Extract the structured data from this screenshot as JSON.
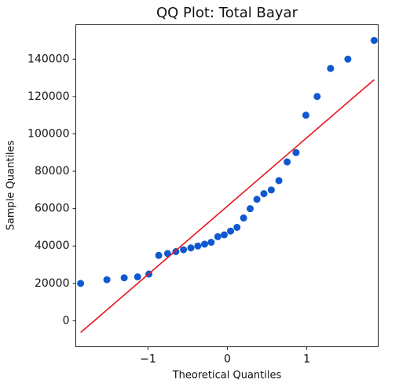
{
  "chart_data": {
    "type": "scatter",
    "title": "QQ Plot: Total Bayar",
    "x_label": "Theoretical Quantiles",
    "y_label": "Sample Quantiles",
    "series": [
      {
        "style": "points",
        "color": "#1058d0",
        "x": [
          -1.849,
          -1.518,
          -1.3,
          -1.131,
          -0.989,
          -0.865,
          -0.753,
          -0.649,
          -0.553,
          -0.46,
          -0.372,
          -0.287,
          -0.204,
          -0.121,
          -0.04,
          0.04,
          0.121,
          0.204,
          0.287,
          0.372,
          0.46,
          0.553,
          0.649,
          0.753,
          0.865,
          0.989,
          1.131,
          1.3,
          1.518,
          1.849
        ],
        "values": [
          20000,
          22000,
          23000,
          23500,
          25000,
          35000,
          36000,
          37000,
          38000,
          39000,
          40000,
          41000,
          42000,
          45000,
          46000,
          48000,
          50000,
          55000,
          60000,
          65000,
          68000,
          70000,
          75000,
          85000,
          90000,
          110000,
          120000,
          135000,
          140000,
          150000
        ]
      },
      {
        "style": "line",
        "color": "#e8141c",
        "x": [
          -1.849,
          1.849
        ],
        "values": [
          -6300,
          129000
        ]
      }
    ],
    "xlim": [
      -1.91,
      1.9
    ],
    "ylim": [
      -13900,
      158400
    ],
    "xticks": [
      {
        "value": -1,
        "label": "−1"
      },
      0,
      1
    ],
    "yticks": [
      0,
      20000,
      40000,
      60000,
      80000,
      100000,
      120000,
      140000
    ],
    "grid": false
  }
}
